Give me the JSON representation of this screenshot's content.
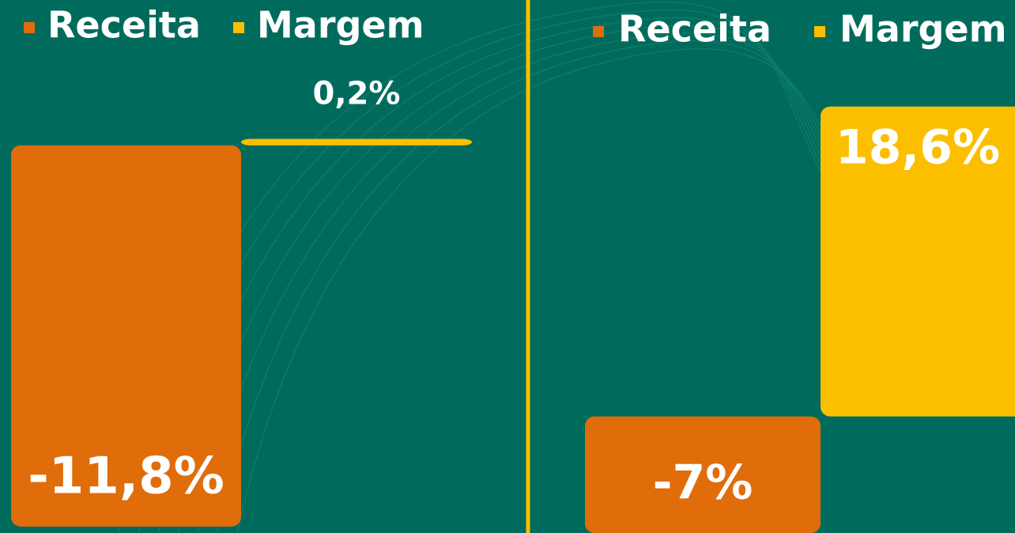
{
  "chart_data": [
    {
      "type": "bar",
      "ylim": [
        -12,
        4.5
      ],
      "series": [
        {
          "name": "Receita",
          "color": "#e06c0a",
          "values": [
            -11.8
          ],
          "value_labels": [
            "-11,8%"
          ]
        },
        {
          "name": "Margem",
          "color": "#fbbf00",
          "values": [
            0.2
          ],
          "value_labels": [
            "0,2%"
          ]
        }
      ]
    },
    {
      "type": "bar",
      "ylim": [
        -7,
        25
      ],
      "series": [
        {
          "name": "Receita",
          "color": "#e06c0a",
          "values": [
            -7
          ],
          "value_labels": [
            "-7%"
          ]
        },
        {
          "name": "Margem",
          "color": "#fbbf00",
          "values": [
            18.6
          ],
          "value_labels": [
            "18,6%"
          ]
        }
      ]
    }
  ]
}
